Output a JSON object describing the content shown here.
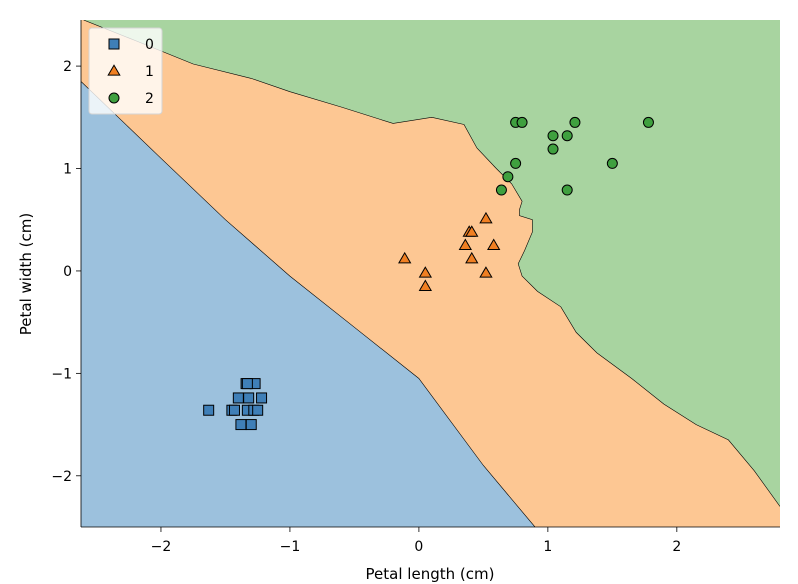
{
  "chart_data": {
    "type": "scatter",
    "title": "",
    "xlabel": "Petal length (cm)",
    "ylabel": "Petal width (cm)",
    "xlim": [
      -2.62,
      2.8
    ],
    "ylim": [
      -2.5,
      2.45
    ],
    "xticks": [
      -2,
      -1,
      0,
      1,
      2
    ],
    "xtick_labels": [
      "−2",
      "−1",
      "0",
      "1",
      "2"
    ],
    "yticks": [
      -2,
      -1,
      0,
      1,
      2
    ],
    "ytick_labels": [
      "−2",
      "−1",
      "0",
      "1",
      "2"
    ],
    "grid": false,
    "legend_position": "top-left",
    "colors": {
      "class_0": "#3f7fb7",
      "class_1": "#f07f22",
      "class_2": "#3fa03f"
    },
    "region_colors": {
      "class_0": "#9cc1dd",
      "class_1": "#fdc793",
      "class_2": "#a8d4a0"
    },
    "decision_regions": {
      "boundary_0_1": [
        [
          -2.62,
          1.85
        ],
        [
          -2.0,
          1.1
        ],
        [
          -1.5,
          0.5
        ],
        [
          -1.0,
          -0.05
        ],
        [
          -0.5,
          -0.55
        ],
        [
          0.0,
          -1.05
        ],
        [
          0.5,
          -1.9
        ],
        [
          0.9,
          -2.5
        ]
      ],
      "boundary_1_2": [
        [
          -2.6,
          2.45
        ],
        [
          -2.2,
          2.25
        ],
        [
          -1.75,
          2.02
        ],
        [
          -1.3,
          1.88
        ],
        [
          -1.0,
          1.75
        ],
        [
          -0.6,
          1.6
        ],
        [
          -0.3,
          1.48
        ],
        [
          -0.2,
          1.44
        ],
        [
          0.1,
          1.5
        ],
        [
          0.35,
          1.43
        ],
        [
          0.45,
          1.2
        ],
        [
          0.6,
          1.0
        ],
        [
          0.72,
          0.85
        ],
        [
          0.8,
          0.68
        ],
        [
          0.78,
          0.6
        ],
        [
          0.78,
          0.54
        ],
        [
          0.88,
          0.5
        ],
        [
          0.88,
          0.38
        ],
        [
          0.82,
          0.2
        ],
        [
          0.77,
          0.07
        ],
        [
          0.8,
          -0.05
        ],
        [
          0.92,
          -0.2
        ],
        [
          1.1,
          -0.35
        ],
        [
          1.22,
          -0.6
        ],
        [
          1.38,
          -0.8
        ],
        [
          1.65,
          -1.05
        ],
        [
          1.9,
          -1.3
        ],
        [
          2.15,
          -1.5
        ],
        [
          2.4,
          -1.65
        ],
        [
          2.6,
          -1.95
        ],
        [
          2.8,
          -2.3
        ]
      ]
    },
    "series": [
      {
        "name": "0",
        "marker": "square",
        "x": [
          -1.63,
          -1.45,
          -1.43,
          -1.4,
          -1.38,
          -1.34,
          -1.33,
          -1.32,
          -1.3,
          -1.28,
          -1.27,
          -1.25,
          -1.22,
          -1.33
        ],
        "y": [
          -1.36,
          -1.36,
          -1.36,
          -1.24,
          -1.5,
          -1.1,
          -1.36,
          -1.24,
          -1.5,
          -1.36,
          -1.1,
          -1.36,
          -1.24,
          -1.1
        ]
      },
      {
        "name": "1",
        "marker": "triangle",
        "x": [
          -0.11,
          0.05,
          0.05,
          0.36,
          0.39,
          0.41,
          0.41,
          0.52,
          0.52,
          0.58
        ],
        "y": [
          0.12,
          -0.02,
          -0.15,
          0.25,
          0.38,
          0.38,
          0.12,
          0.51,
          -0.02,
          0.25
        ]
      },
      {
        "name": "2",
        "marker": "circle",
        "x": [
          0.64,
          0.69,
          0.75,
          0.75,
          0.8,
          1.04,
          1.04,
          1.15,
          1.15,
          1.21,
          1.5,
          1.78
        ],
        "y": [
          0.79,
          0.92,
          1.05,
          1.45,
          1.45,
          1.32,
          1.19,
          1.32,
          0.79,
          1.45,
          1.05,
          1.45
        ]
      }
    ]
  }
}
